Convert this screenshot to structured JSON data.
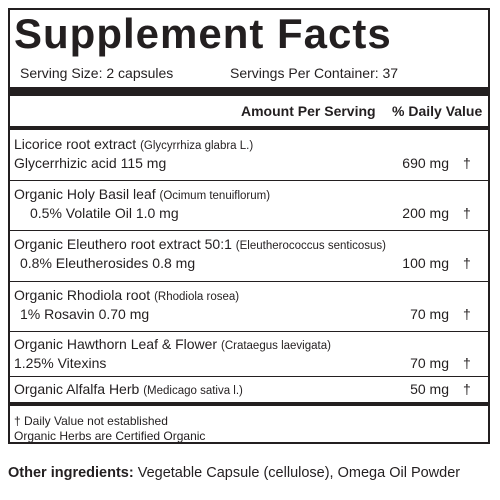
{
  "title": "Supplement Facts",
  "serving_size": "Serving Size: 2 capsules",
  "servings_per_container": "Servings Per Container: 37",
  "header": {
    "amount": "Amount Per Serving",
    "dv": "% Daily Value"
  },
  "ingredients": [
    {
      "name": "Licorice  root extract",
      "sci": "(Glycyrrhiza glabra L.)",
      "sub": "Glycerrhizic acid 115 mg",
      "amount": "690 mg",
      "dv": "†"
    },
    {
      "name": "Organic Holy Basil leaf",
      "sci": "(Ocimum tenuiflorum)",
      "sub": "0.5% Volatile Oil   1.0 mg",
      "amount": "200 mg",
      "dv": "†"
    },
    {
      "name": "Organic Eleuthero root extract 50:1",
      "sci": "(Eleutherococcus senticosus)",
      "sub": "0.8% Eleutherosides 0.8 mg",
      "amount": "100 mg",
      "dv": "†"
    },
    {
      "name": "Organic Rhodiola root",
      "sci": "(Rhodiola rosea)",
      "sub": "1% Rosavin  0.70 mg",
      "amount": "70 mg",
      "dv": "†"
    },
    {
      "name": "Organic Hawthorn Leaf & Flower",
      "sci": "(Crataegus laevigata)",
      "sub": "1.25% Vitexins",
      "amount": "70 mg",
      "dv": "†"
    },
    {
      "name": "Organic Alfalfa Herb",
      "sci": "(Medicago sativa l.)",
      "sub": "",
      "amount": "50 mg",
      "dv": "†"
    }
  ],
  "footnotes": [
    "† Daily Value not established",
    "Organic Herbs are Certified Organic"
  ],
  "other_ingredients": {
    "label": "Other ingredients:",
    "text": " Vegetable Capsule (cellulose), Omega Oil Powder"
  }
}
